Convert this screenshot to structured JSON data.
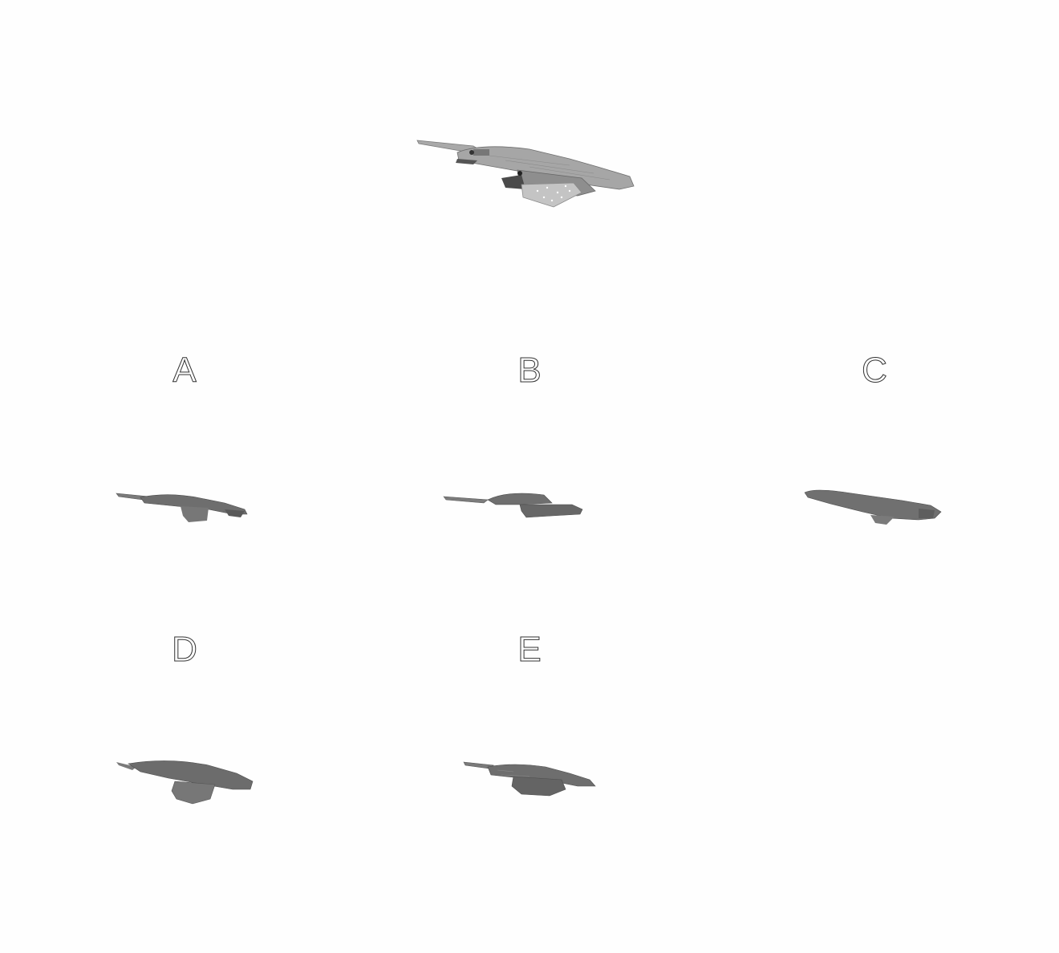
{
  "options": [
    {
      "label": "A"
    },
    {
      "label": "B"
    },
    {
      "label": "C"
    },
    {
      "label": "D"
    },
    {
      "label": "E"
    }
  ],
  "colors": {
    "background": "#fefefe",
    "reference_model": "#9a9a9a",
    "option_models": "#6e6e6e"
  }
}
